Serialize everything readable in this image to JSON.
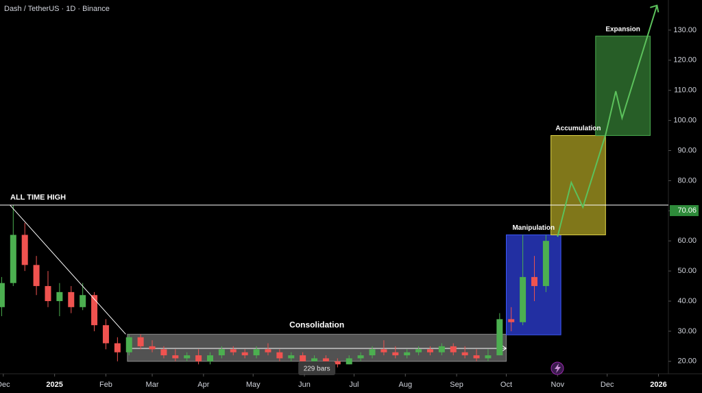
{
  "chart_data": {
    "type": "candlestick",
    "title": "Dash / TetherUS · 1D · Binance",
    "up_color": "#4caf50",
    "down_color": "#ef5350",
    "xlim": [
      -2,
      402
    ],
    "ylim": [
      17,
      140
    ],
    "xticks": [
      {
        "value": 0,
        "label": "Dec"
      },
      {
        "value": 31,
        "label": "2025"
      },
      {
        "value": 62,
        "label": "Feb"
      },
      {
        "value": 90,
        "label": "Mar"
      },
      {
        "value": 121,
        "label": "Apr"
      },
      {
        "value": 151,
        "label": "May"
      },
      {
        "value": 182,
        "label": "Jun"
      },
      {
        "value": 212,
        "label": "Jul"
      },
      {
        "value": 243,
        "label": "Aug"
      },
      {
        "value": 274,
        "label": "Sep"
      },
      {
        "value": 304,
        "label": "Oct"
      },
      {
        "value": 335,
        "label": "Nov"
      },
      {
        "value": 365,
        "label": "Dec"
      },
      {
        "value": 396,
        "label": "2026"
      }
    ],
    "yticks": [
      {
        "value": 20,
        "label": "20.00"
      },
      {
        "value": 30,
        "label": "30.00"
      },
      {
        "value": 40,
        "label": "40.00"
      },
      {
        "value": 50,
        "label": "50.00"
      },
      {
        "value": 60,
        "label": "60.00"
      },
      {
        "value": 70,
        "label": "70.00"
      },
      {
        "value": 80,
        "label": "80.00"
      },
      {
        "value": 90,
        "label": "90.00"
      },
      {
        "value": 100,
        "label": "100.00"
      },
      {
        "value": 110,
        "label": "110.00"
      },
      {
        "value": 120,
        "label": "120.00"
      },
      {
        "value": 130,
        "label": "130.00"
      }
    ],
    "x": [
      -1,
      6,
      13,
      20,
      27,
      34,
      41,
      48,
      55,
      62,
      69,
      76,
      83,
      90,
      97,
      104,
      111,
      118,
      125,
      132,
      139,
      146,
      153,
      160,
      167,
      174,
      181,
      188,
      195,
      202,
      209,
      216,
      223,
      230,
      237,
      244,
      251,
      258,
      265,
      272,
      279,
      286,
      293,
      300,
      307,
      314,
      321,
      328
    ],
    "open": [
      38,
      46,
      62,
      52,
      45,
      40,
      43,
      38,
      42,
      32,
      26,
      23,
      28,
      25,
      24,
      22,
      21,
      22,
      20,
      22,
      24,
      23,
      22,
      24,
      23,
      21,
      22,
      20,
      21,
      20,
      19,
      21,
      22,
      24,
      23,
      22,
      23,
      24,
      23,
      25,
      23,
      22,
      21,
      22,
      34,
      33,
      48,
      45
    ],
    "high": [
      48,
      72,
      66,
      55,
      50,
      46,
      45,
      46,
      43,
      34,
      28,
      29,
      29,
      27,
      25,
      24,
      23,
      24,
      23,
      25,
      25,
      24,
      25,
      26,
      24,
      23,
      23,
      22,
      22,
      21,
      22,
      23,
      25,
      27,
      25,
      24,
      25,
      25,
      26,
      26,
      25,
      24,
      24,
      36,
      38,
      62,
      55,
      62
    ],
    "low": [
      35,
      45,
      50,
      42,
      38,
      35,
      36,
      37,
      30,
      24,
      20,
      22,
      24,
      23,
      21,
      20,
      20,
      19,
      19,
      21,
      22,
      21,
      21,
      22,
      20,
      20,
      19,
      19,
      19,
      18,
      19,
      20,
      21,
      22,
      21,
      21,
      22,
      22,
      22,
      22,
      21,
      20,
      20,
      22,
      30,
      32,
      40,
      43
    ],
    "close": [
      46,
      62,
      52,
      45,
      40,
      43,
      38,
      42,
      32,
      26,
      23,
      28,
      25,
      24,
      22,
      21,
      22,
      20,
      22,
      24,
      23,
      22,
      24,
      23,
      21,
      22,
      20,
      21,
      20,
      19,
      21,
      22,
      24,
      23,
      22,
      23,
      24,
      23,
      25,
      23,
      22,
      21,
      22,
      34,
      33,
      48,
      45,
      60
    ],
    "last_price": 70.06,
    "ath": {
      "label": "ALL TIME HIGH",
      "price": 71.9,
      "x0": -2,
      "trend_end_x": 74,
      "trend_end_price": 29
    },
    "zones": [
      {
        "label": "Consolidation",
        "x0": 75,
        "x1": 304,
        "y0": 20,
        "y1": 29,
        "fill": "rgba(150,150,150,0.55)",
        "stroke": "#8a8a8a"
      },
      {
        "label": "Manipulation",
        "x0": 304,
        "x1": 337,
        "y0": 28.8,
        "y1": 62,
        "fill": "rgba(40,55,190,0.85)",
        "stroke": "#3d5afe"
      },
      {
        "label": "Accumulation",
        "x0": 331,
        "x1": 364,
        "y0": 62,
        "y1": 95,
        "fill": "rgba(150,140,30,0.85)",
        "stroke": "#e6da4a"
      },
      {
        "label": "Expansion",
        "x0": 358,
        "x1": 391,
        "y0": 95,
        "y1": 128,
        "fill": "rgba(46,110,46,0.85)",
        "stroke": "#4caf50"
      }
    ],
    "range": {
      "label": "229 bars",
      "x0": 75,
      "x1": 304,
      "price": 24.3
    },
    "path": {
      "x": [
        335,
        343.3,
        350.3,
        364,
        370.2,
        374,
        395.1
      ],
      "y": [
        61.4,
        79.4,
        71.2,
        95.2,
        109.7,
        100.8,
        138.2
      ],
      "color": "#5cc15c"
    }
  }
}
